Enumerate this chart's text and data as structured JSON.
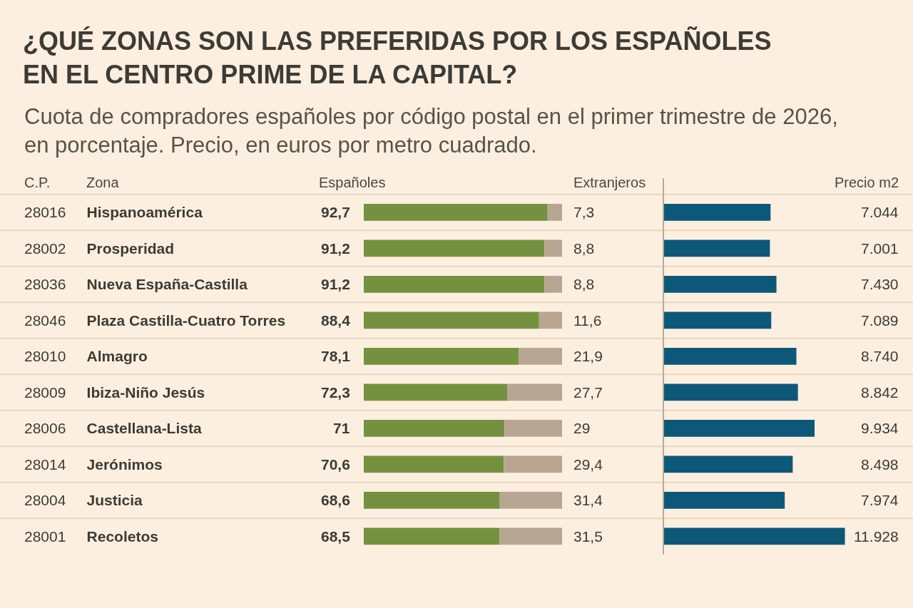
{
  "chart_data": [
    {
      "type": "bar",
      "orientation": "horizontal",
      "stacked": true,
      "title": "¿QUÉ ZONAS SON LAS PREFERIDAS POR LOS ESPAÑOLES EN EL CENTRO PRIME DE LA CAPITAL?",
      "subtitle": "Cuota de compradores españoles por código postal en el primer trimestre de 2026, en porcentaje. Precio, en euros por metro cuadrado.",
      "ylabel": "Zona",
      "categories": [
        "28016 Hispanoamérica",
        "28002 Prosperidad",
        "28036 Nueva España-Castilla",
        "28046 Plaza Castilla-Cuatro Torres",
        "28010 Almagro",
        "28009 Ibiza-Niño Jesús",
        "28006 Castellana-Lista",
        "28014 Jerónimos",
        "28004 Justicia",
        "28001 Recoletos"
      ],
      "series": [
        {
          "name": "Españoles",
          "color": "#74913f",
          "values": [
            92.7,
            91.2,
            91.2,
            88.4,
            78.1,
            72.3,
            71,
            70.6,
            68.6,
            68.5
          ],
          "value_labels": [
            "92,7",
            "91,2",
            "91,2",
            "88,4",
            "78,1",
            "72,3",
            "71",
            "70,6",
            "68,6",
            "68,5"
          ]
        },
        {
          "name": "Extranjeros",
          "color": "#b8a693",
          "values": [
            7.3,
            8.8,
            8.8,
            11.6,
            21.9,
            27.7,
            29,
            29.4,
            31.4,
            31.5
          ],
          "value_labels": [
            "7,3",
            "8,8",
            "8,8",
            "11,6",
            "21,9",
            "27,7",
            "29",
            "29,4",
            "31,4",
            "31,5"
          ]
        }
      ],
      "xlim": [
        0,
        100
      ],
      "tick_labels": "y",
      "grid": "y",
      "annotations": [
        "C.P."
      ]
    },
    {
      "type": "bar",
      "orientation": "horizontal",
      "categories": [
        null,
        null,
        null,
        null,
        null,
        null,
        null,
        null,
        null,
        null
      ],
      "series": [
        {
          "name": "Precio m2",
          "color": "#0d5878",
          "values": [
            7044,
            7001,
            7430,
            7089,
            8740,
            8842,
            9934,
            8498,
            7974,
            11928
          ],
          "value_labels": [
            "7.044",
            "7.001",
            "7.430",
            "7.089",
            "8.740",
            "8.842",
            "9.934",
            "8.498",
            "7.974",
            "11.928"
          ]
        }
      ],
      "tick_labels": false,
      "grid": "y",
      "ref_lines": [
        {
          "axis": "x",
          "value": 0,
          "color": "#b6aa9a"
        }
      ]
    }
  ]
}
